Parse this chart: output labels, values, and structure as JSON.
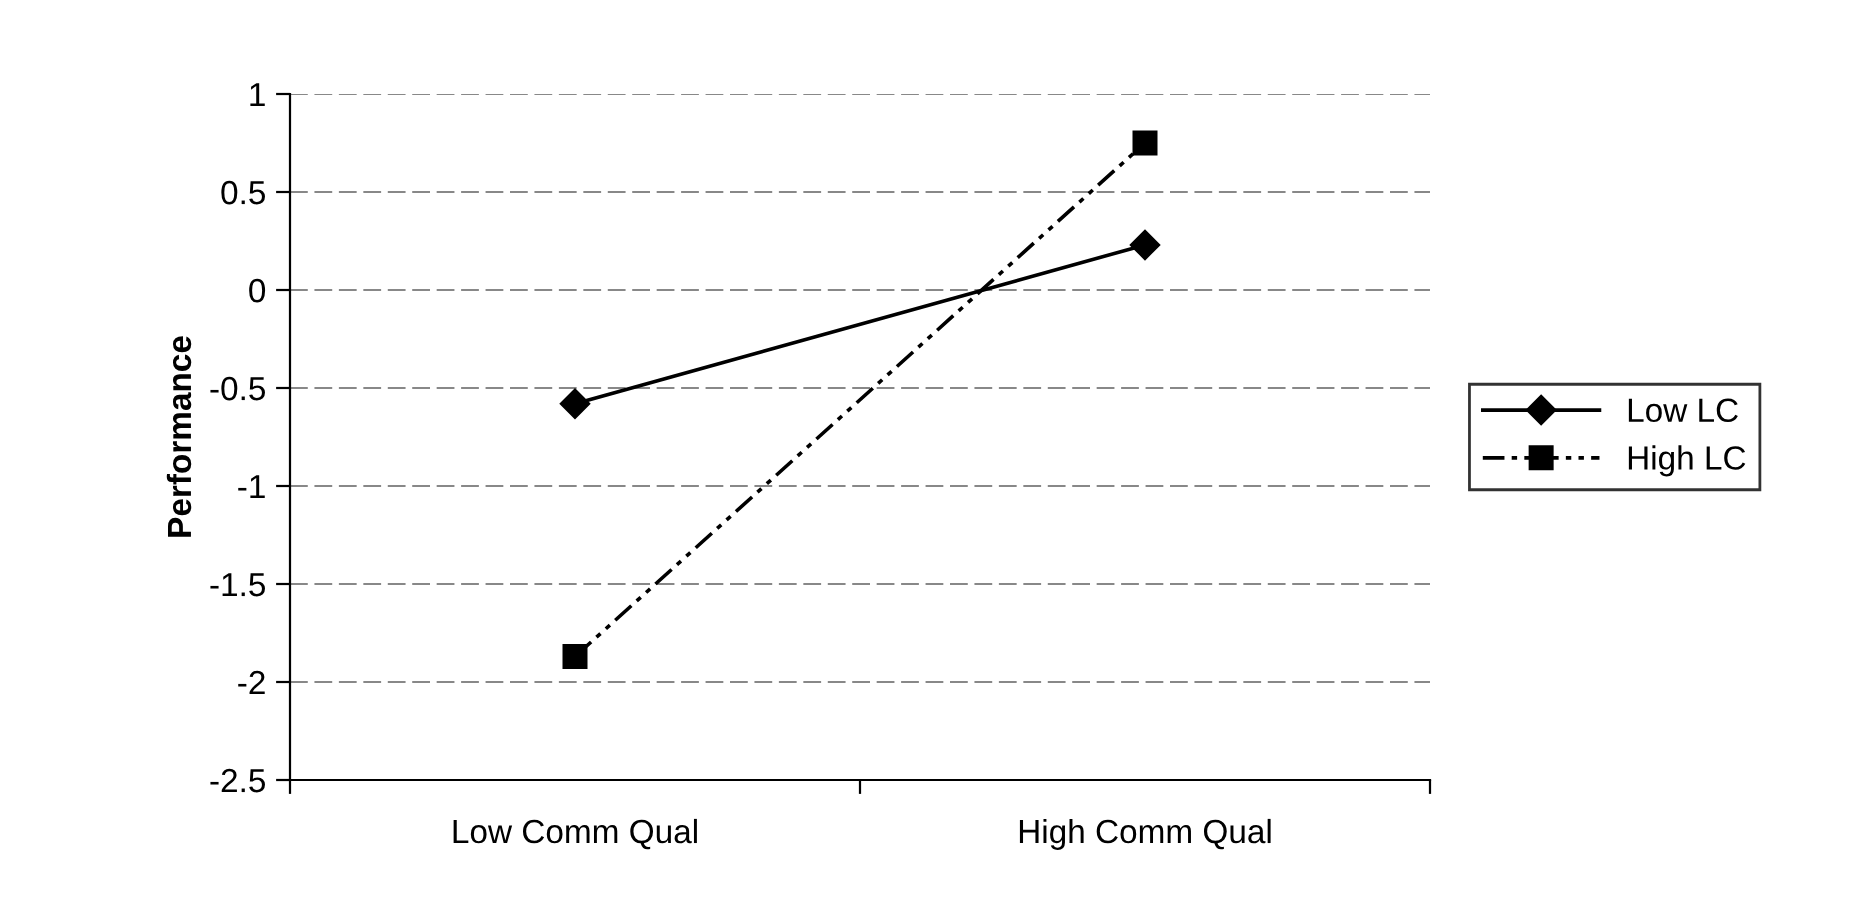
{
  "chart_data": {
    "type": "line",
    "ylabel": "Performance",
    "categories": [
      "Low Comm Qual",
      "High Comm Qual"
    ],
    "series": [
      {
        "name": "Low LC",
        "color": "#000000",
        "values": [
          -0.58,
          0.23
        ],
        "marker": "diamond",
        "line_style": "solid"
      },
      {
        "name": "High LC",
        "color": "#000000",
        "values": [
          -1.87,
          0.75
        ],
        "marker": "square",
        "line_style": "dashdotdot"
      }
    ],
    "ylim": [
      -2.5,
      1
    ],
    "yticks": [
      -2.5,
      -2,
      -1.5,
      -1,
      -0.5,
      0,
      0.5,
      1
    ],
    "grid": "y",
    "legend": "right"
  }
}
